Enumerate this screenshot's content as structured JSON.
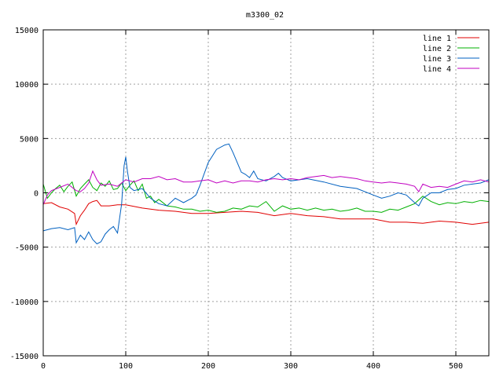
{
  "chart_data": {
    "type": "line",
    "title": "m3300_02",
    "xlabel": "",
    "ylabel": "",
    "xlim": [
      0,
      540
    ],
    "ylim": [
      -15000,
      15000
    ],
    "xticks": [
      0,
      100,
      200,
      300,
      400,
      500
    ],
    "yticks": [
      -15000,
      -10000,
      -5000,
      0,
      5000,
      10000,
      15000
    ],
    "grid": true,
    "legend_position": "top-right",
    "series": [
      {
        "name": "line 1",
        "color": "#e00000",
        "points": [
          [
            0,
            -1000
          ],
          [
            10,
            -900
          ],
          [
            20,
            -1300
          ],
          [
            30,
            -1500
          ],
          [
            38,
            -1900
          ],
          [
            40,
            -2900
          ],
          [
            45,
            -2100
          ],
          [
            50,
            -1600
          ],
          [
            55,
            -1000
          ],
          [
            60,
            -800
          ],
          [
            65,
            -700
          ],
          [
            70,
            -1200
          ],
          [
            80,
            -1200
          ],
          [
            90,
            -1100
          ],
          [
            100,
            -1100
          ],
          [
            120,
            -1400
          ],
          [
            140,
            -1600
          ],
          [
            160,
            -1700
          ],
          [
            180,
            -1900
          ],
          [
            200,
            -1900
          ],
          [
            220,
            -1800
          ],
          [
            240,
            -1700
          ],
          [
            260,
            -1800
          ],
          [
            280,
            -2100
          ],
          [
            300,
            -1900
          ],
          [
            320,
            -2100
          ],
          [
            340,
            -2200
          ],
          [
            360,
            -2400
          ],
          [
            380,
            -2400
          ],
          [
            400,
            -2400
          ],
          [
            420,
            -2700
          ],
          [
            440,
            -2700
          ],
          [
            460,
            -2800
          ],
          [
            480,
            -2600
          ],
          [
            500,
            -2700
          ],
          [
            520,
            -2900
          ],
          [
            540,
            -2700
          ]
        ]
      },
      {
        "name": "line 2",
        "color": "#00b000",
        "points": [
          [
            0,
            800
          ],
          [
            5,
            -500
          ],
          [
            10,
            0
          ],
          [
            15,
            400
          ],
          [
            20,
            700
          ],
          [
            25,
            100
          ],
          [
            30,
            600
          ],
          [
            35,
            1000
          ],
          [
            40,
            -300
          ],
          [
            45,
            400
          ],
          [
            50,
            800
          ],
          [
            55,
            1200
          ],
          [
            60,
            500
          ],
          [
            65,
            200
          ],
          [
            70,
            900
          ],
          [
            75,
            600
          ],
          [
            80,
            1100
          ],
          [
            85,
            300
          ],
          [
            90,
            400
          ],
          [
            95,
            900
          ],
          [
            100,
            200
          ],
          [
            105,
            700
          ],
          [
            110,
            1100
          ],
          [
            115,
            200
          ],
          [
            120,
            800
          ],
          [
            125,
            -500
          ],
          [
            130,
            -300
          ],
          [
            135,
            -900
          ],
          [
            140,
            -600
          ],
          [
            150,
            -1200
          ],
          [
            160,
            -1300
          ],
          [
            170,
            -1500
          ],
          [
            180,
            -1500
          ],
          [
            190,
            -1700
          ],
          [
            200,
            -1600
          ],
          [
            210,
            -1800
          ],
          [
            220,
            -1700
          ],
          [
            230,
            -1400
          ],
          [
            240,
            -1500
          ],
          [
            250,
            -1200
          ],
          [
            260,
            -1300
          ],
          [
            270,
            -800
          ],
          [
            280,
            -1700
          ],
          [
            290,
            -1200
          ],
          [
            300,
            -1500
          ],
          [
            310,
            -1400
          ],
          [
            320,
            -1600
          ],
          [
            330,
            -1400
          ],
          [
            340,
            -1600
          ],
          [
            350,
            -1500
          ],
          [
            360,
            -1700
          ],
          [
            370,
            -1600
          ],
          [
            380,
            -1400
          ],
          [
            390,
            -1700
          ],
          [
            400,
            -1700
          ],
          [
            410,
            -1800
          ],
          [
            420,
            -1500
          ],
          [
            430,
            -1600
          ],
          [
            440,
            -1300
          ],
          [
            450,
            -1000
          ],
          [
            460,
            -300
          ],
          [
            470,
            -800
          ],
          [
            480,
            -1100
          ],
          [
            490,
            -900
          ],
          [
            500,
            -1000
          ],
          [
            510,
            -800
          ],
          [
            520,
            -900
          ],
          [
            530,
            -700
          ],
          [
            540,
            -800
          ]
        ]
      },
      {
        "name": "line 3",
        "color": "#0060c0",
        "points": [
          [
            0,
            -3500
          ],
          [
            10,
            -3300
          ],
          [
            20,
            -3200
          ],
          [
            30,
            -3400
          ],
          [
            38,
            -3200
          ],
          [
            40,
            -4600
          ],
          [
            45,
            -3900
          ],
          [
            50,
            -4300
          ],
          [
            55,
            -3600
          ],
          [
            60,
            -4300
          ],
          [
            65,
            -4700
          ],
          [
            70,
            -4500
          ],
          [
            75,
            -3800
          ],
          [
            80,
            -3400
          ],
          [
            85,
            -3100
          ],
          [
            90,
            -3700
          ],
          [
            95,
            -1000
          ],
          [
            98,
            2500
          ],
          [
            100,
            3300
          ],
          [
            102,
            2000
          ],
          [
            105,
            500
          ],
          [
            110,
            200
          ],
          [
            120,
            400
          ],
          [
            130,
            -500
          ],
          [
            140,
            -1000
          ],
          [
            150,
            -1200
          ],
          [
            160,
            -500
          ],
          [
            170,
            -900
          ],
          [
            180,
            -500
          ],
          [
            185,
            -200
          ],
          [
            190,
            700
          ],
          [
            200,
            2800
          ],
          [
            210,
            4000
          ],
          [
            220,
            4400
          ],
          [
            225,
            4500
          ],
          [
            230,
            3700
          ],
          [
            235,
            2800
          ],
          [
            240,
            1900
          ],
          [
            245,
            1700
          ],
          [
            250,
            1400
          ],
          [
            255,
            2000
          ],
          [
            260,
            1300
          ],
          [
            270,
            1100
          ],
          [
            280,
            1500
          ],
          [
            285,
            1800
          ],
          [
            290,
            1400
          ],
          [
            300,
            1100
          ],
          [
            320,
            1300
          ],
          [
            340,
            1000
          ],
          [
            360,
            600
          ],
          [
            380,
            400
          ],
          [
            400,
            -200
          ],
          [
            410,
            -500
          ],
          [
            420,
            -300
          ],
          [
            430,
            0
          ],
          [
            440,
            -200
          ],
          [
            450,
            -900
          ],
          [
            455,
            -1200
          ],
          [
            460,
            -500
          ],
          [
            470,
            0
          ],
          [
            480,
            0
          ],
          [
            490,
            300
          ],
          [
            500,
            400
          ],
          [
            510,
            700
          ],
          [
            520,
            800
          ],
          [
            530,
            900
          ],
          [
            540,
            1200
          ]
        ]
      },
      {
        "name": "line 4",
        "color": "#c000c0",
        "points": [
          [
            0,
            -1100
          ],
          [
            5,
            -200
          ],
          [
            10,
            200
          ],
          [
            20,
            500
          ],
          [
            30,
            800
          ],
          [
            35,
            500
          ],
          [
            40,
            200
          ],
          [
            45,
            100
          ],
          [
            50,
            400
          ],
          [
            55,
            900
          ],
          [
            60,
            2000
          ],
          [
            65,
            1200
          ],
          [
            70,
            700
          ],
          [
            80,
            800
          ],
          [
            90,
            600
          ],
          [
            100,
            1200
          ],
          [
            110,
            1000
          ],
          [
            120,
            1300
          ],
          [
            130,
            1300
          ],
          [
            140,
            1500
          ],
          [
            150,
            1200
          ],
          [
            160,
            1300
          ],
          [
            170,
            1000
          ],
          [
            180,
            1000
          ],
          [
            190,
            1100
          ],
          [
            200,
            1200
          ],
          [
            210,
            900
          ],
          [
            220,
            1100
          ],
          [
            230,
            900
          ],
          [
            240,
            1100
          ],
          [
            250,
            1100
          ],
          [
            260,
            1000
          ],
          [
            270,
            1200
          ],
          [
            280,
            1300
          ],
          [
            290,
            1200
          ],
          [
            300,
            1300
          ],
          [
            310,
            1200
          ],
          [
            320,
            1400
          ],
          [
            330,
            1500
          ],
          [
            340,
            1600
          ],
          [
            350,
            1400
          ],
          [
            360,
            1500
          ],
          [
            370,
            1400
          ],
          [
            380,
            1300
          ],
          [
            390,
            1100
          ],
          [
            400,
            1000
          ],
          [
            410,
            900
          ],
          [
            420,
            1000
          ],
          [
            430,
            900
          ],
          [
            440,
            800
          ],
          [
            450,
            600
          ],
          [
            455,
            100
          ],
          [
            460,
            800
          ],
          [
            470,
            500
          ],
          [
            480,
            600
          ],
          [
            490,
            500
          ],
          [
            500,
            800
          ],
          [
            510,
            1100
          ],
          [
            520,
            1000
          ],
          [
            530,
            1200
          ],
          [
            540,
            1000
          ]
        ]
      }
    ]
  }
}
